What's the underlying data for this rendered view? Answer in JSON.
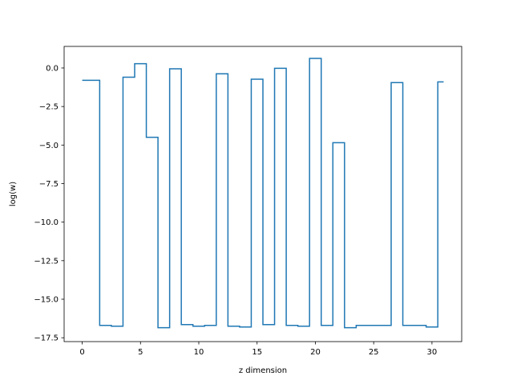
{
  "chart_data": {
    "type": "line",
    "drawstyle": "steps-mid",
    "xlabel": "z dimension",
    "ylabel": "log(w)",
    "xlim": [
      -1.55,
      32.55
    ],
    "ylim": [
      -17.75,
      1.4
    ],
    "grid": false,
    "x_ticks": [
      0,
      5,
      10,
      15,
      20,
      25,
      30
    ],
    "x_tick_labels": [
      "0",
      "5",
      "10",
      "15",
      "20",
      "25",
      "30"
    ],
    "y_ticks": [
      0.0,
      -2.5,
      -5.0,
      -7.5,
      -10.0,
      -12.5,
      -15.0,
      -17.5
    ],
    "y_tick_labels": [
      "0.0",
      "−2.5",
      "−5.0",
      "−7.5",
      "−10.0",
      "−12.5",
      "−15.0",
      "−17.5"
    ],
    "series": [
      {
        "color": "#1f77b4",
        "x": [
          0,
          1,
          2,
          3,
          4,
          5,
          6,
          7,
          8,
          9,
          10,
          11,
          12,
          13,
          14,
          15,
          16,
          17,
          18,
          19,
          20,
          21,
          22,
          23,
          24,
          25,
          26,
          27,
          28,
          29,
          30,
          31
        ],
        "y": [
          -0.8,
          -0.8,
          -16.7,
          -16.75,
          -0.6,
          0.28,
          -4.5,
          -16.85,
          -0.05,
          -16.65,
          -16.75,
          -16.7,
          -0.38,
          -16.75,
          -16.8,
          -0.73,
          -16.65,
          -0.02,
          -16.7,
          -16.75,
          0.62,
          -16.7,
          -4.85,
          -16.85,
          -16.7,
          -16.7,
          -16.7,
          -0.95,
          -16.7,
          -16.7,
          -16.8,
          -0.9
        ]
      }
    ]
  }
}
